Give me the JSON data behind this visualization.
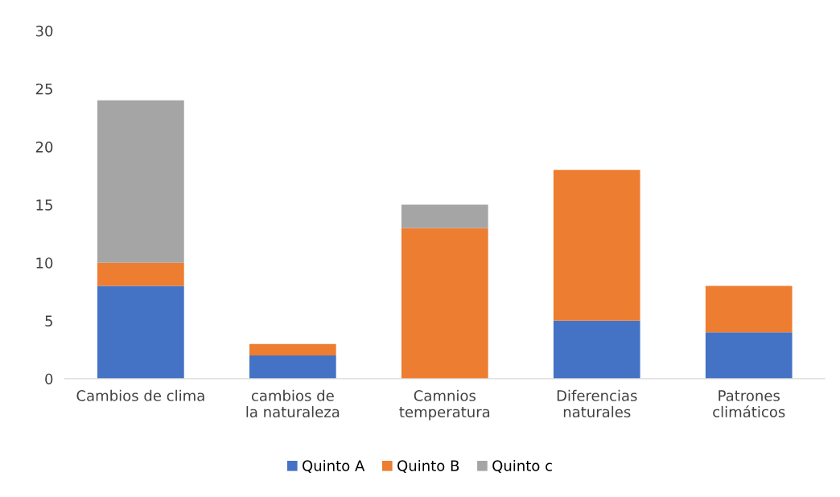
{
  "chart_data": {
    "type": "bar",
    "stacked": true,
    "categories": [
      "Cambios de clima",
      "cambios de la naturaleza",
      "Camnios temperatura",
      "Diferencias naturales",
      "Patrones climáticos"
    ],
    "series": [
      {
        "name": "Quinto A",
        "color": "#4472c4",
        "values": [
          8,
          2,
          0,
          5,
          4
        ]
      },
      {
        "name": "Quinto B",
        "color": "#ed7d31",
        "values": [
          2,
          1,
          13,
          13,
          4
        ]
      },
      {
        "name": "Quinto c",
        "color": "#a5a5a5",
        "values": [
          14,
          0,
          2,
          0,
          0
        ]
      }
    ],
    "ylim": [
      0,
      30
    ],
    "yticks": [
      0,
      5,
      10,
      15,
      20,
      25,
      30
    ],
    "grid": false,
    "legend": "bottom"
  }
}
